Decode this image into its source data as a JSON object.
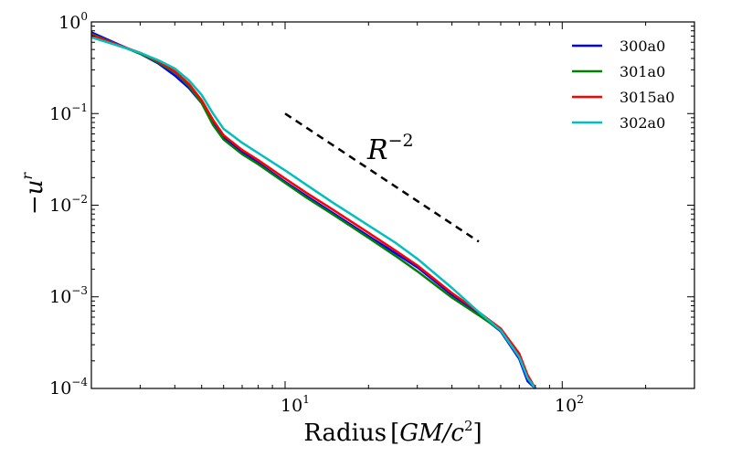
{
  "chart_data": {
    "type": "line",
    "title": "",
    "xscale": "log",
    "yscale": "log",
    "xlim": [
      2,
      300
    ],
    "ylim": [
      0.0001,
      1
    ],
    "xlabel": {
      "plain": "Radius",
      "math": "GM/c",
      "exp": "2"
    },
    "ylabel": {
      "sign": "−",
      "base": "u",
      "exp": "r"
    },
    "x_ticks": [
      {
        "base": "10",
        "exp": "1",
        "value": 10
      },
      {
        "base": "10",
        "exp": "2",
        "value": 100
      }
    ],
    "y_ticks": [
      {
        "base": "10",
        "exp": "0",
        "value": 1
      },
      {
        "base": "10",
        "exp": "−1",
        "value": 0.1
      },
      {
        "base": "10",
        "exp": "−2",
        "value": 0.01
      },
      {
        "base": "10",
        "exp": "−3",
        "value": 0.001
      },
      {
        "base": "10",
        "exp": "−4",
        "value": 0.0001
      }
    ],
    "legend_position": "top-right",
    "series": [
      {
        "name": "300a0",
        "color": "#0000ff",
        "x": [
          2,
          2.5,
          3,
          3.5,
          4,
          4.5,
          5,
          5.5,
          6,
          7,
          8,
          10,
          12,
          15,
          20,
          25,
          30,
          40,
          50,
          60,
          70,
          75,
          80
        ],
        "y": [
          0.77,
          0.57,
          0.45,
          0.35,
          0.26,
          0.19,
          0.13,
          0.08,
          0.055,
          0.038,
          0.029,
          0.018,
          0.0125,
          0.0081,
          0.0046,
          0.003,
          0.0021,
          0.00105,
          0.00065,
          0.00042,
          0.00021,
          0.00012,
          0.0001
        ]
      },
      {
        "name": "301a0",
        "color": "#008000",
        "x": [
          2,
          2.5,
          3,
          3.5,
          4,
          4.5,
          5,
          5.5,
          6,
          7,
          8,
          10,
          12,
          15,
          20,
          25,
          30,
          40,
          50,
          60,
          70,
          75,
          80
        ],
        "y": [
          0.74,
          0.56,
          0.45,
          0.36,
          0.28,
          0.2,
          0.13,
          0.075,
          0.052,
          0.036,
          0.028,
          0.0175,
          0.012,
          0.0078,
          0.0044,
          0.0028,
          0.0019,
          0.00098,
          0.00063,
          0.00043,
          0.00022,
          0.00013,
          0.0001
        ]
      },
      {
        "name": "3015a0",
        "color": "#ff0000",
        "x": [
          2,
          2.5,
          3,
          3.5,
          4,
          4.5,
          5,
          5.5,
          6,
          7,
          8,
          10,
          12,
          15,
          20,
          25,
          30,
          40,
          50,
          60,
          70,
          75,
          80
        ],
        "y": [
          0.72,
          0.56,
          0.46,
          0.37,
          0.29,
          0.21,
          0.14,
          0.085,
          0.058,
          0.04,
          0.031,
          0.0195,
          0.0135,
          0.0088,
          0.005,
          0.0032,
          0.0022,
          0.0011,
          0.00068,
          0.00045,
          0.00024,
          0.00014,
          0.0001
        ]
      },
      {
        "name": "302a0",
        "color": "#00bfbf",
        "x": [
          2,
          2.5,
          3,
          3.5,
          4,
          4.5,
          5,
          5.5,
          6,
          7,
          8,
          10,
          12,
          15,
          20,
          25,
          30,
          40,
          50,
          60,
          70,
          75,
          80
        ],
        "y": [
          0.68,
          0.55,
          0.46,
          0.38,
          0.31,
          0.23,
          0.16,
          0.1,
          0.068,
          0.048,
          0.037,
          0.024,
          0.0165,
          0.0105,
          0.006,
          0.0039,
          0.0026,
          0.00125,
          0.00068,
          0.00043,
          0.00022,
          0.00013,
          0.0001
        ]
      }
    ],
    "reference_line": {
      "x": [
        10,
        50
      ],
      "y": [
        0.1,
        0.004
      ],
      "style": "dashed",
      "color": "#000000"
    },
    "annotation": {
      "base": "R",
      "exp": "−2",
      "x": 20,
      "y": 0.03
    }
  }
}
